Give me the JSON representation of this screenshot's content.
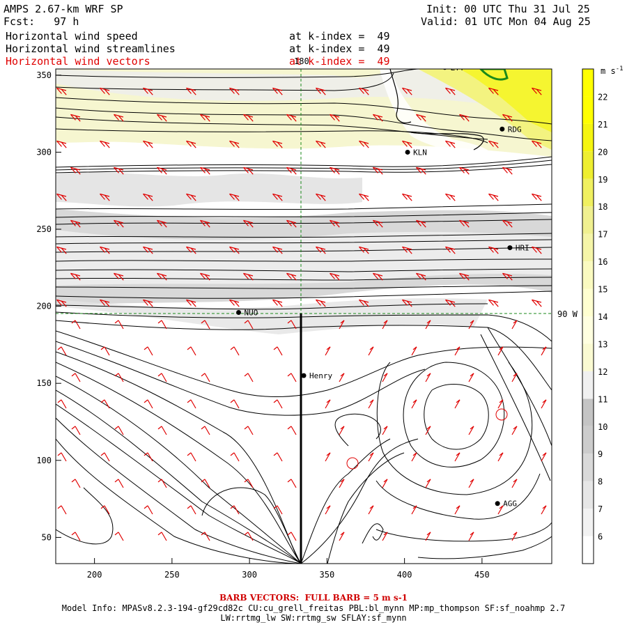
{
  "header": {
    "model": "AMPS 2.67-km WRF SP",
    "forecast": "Fcst:   97 h",
    "init": "Init: 00 UTC Thu 31 Jul 25",
    "valid": "Valid: 01 UTC Mon 04 Aug 25",
    "fields": [
      {
        "label": "Horizontal wind speed",
        "k": "at k-index =  49",
        "color": "#000000"
      },
      {
        "label": "Horizontal wind streamlines",
        "k": "at k-index =  49",
        "color": "#000000"
      },
      {
        "label": "Horizontal wind vectors",
        "k": "at k-index =  49",
        "color": "#e00000"
      }
    ]
  },
  "map": {
    "lon_labels": {
      "top": "180",
      "right": "90 W"
    },
    "stations": [
      {
        "name": "LYT",
        "x": 426,
        "y": 355
      },
      {
        "name": "RDG",
        "x": 463,
        "y": 315
      },
      {
        "name": "KLN",
        "x": 402,
        "y": 300
      },
      {
        "name": "HRI",
        "x": 468,
        "y": 238
      },
      {
        "name": "NUO",
        "x": 293,
        "y": 196
      },
      {
        "name": "Henry",
        "x": 335,
        "y": 155
      },
      {
        "name": "AGG",
        "x": 460,
        "y": 72
      }
    ],
    "x_ticks": [
      "200",
      "250",
      "300",
      "350",
      "400",
      "450"
    ],
    "y_ticks": [
      "50",
      "100",
      "150",
      "200",
      "250",
      "300",
      "350"
    ],
    "xlim": [
      175,
      495
    ],
    "ylim": [
      33,
      354
    ]
  },
  "colorbar": {
    "unit": "m s-1",
    "ticks": [
      "6",
      "7",
      "8",
      "9",
      "10",
      "11",
      "12",
      "13",
      "14",
      "15",
      "16",
      "17",
      "18",
      "19",
      "20",
      "21",
      "22"
    ],
    "colors": [
      "#ffffff",
      "#f2f2f2",
      "#e6e6e6",
      "#d9d9d9",
      "#cccccc",
      "#c4c4c4",
      "#f0f0f0",
      "#fafad2",
      "#ffffe0",
      "#ffffd0",
      "#fafac0",
      "#f5f5a8",
      "#f0f090",
      "#f0f060",
      "#eeee30",
      "#f5f510",
      "#ffff00",
      "#ffff00"
    ]
  },
  "footer": {
    "barb": "BARB VECTORS:  FULL BARB = 5 m s-1",
    "model_info_1": "Model Info: MPASv8.2.3-194-gf29cd82c CU:cu_grell_freitas PBL:bl_mynn MP:mp_thompson SF:sf_noahmp 2.7",
    "model_info_2": "LW:rrtmg_lw SW:rrtmg_sw SFLAY:sf_mynn"
  }
}
